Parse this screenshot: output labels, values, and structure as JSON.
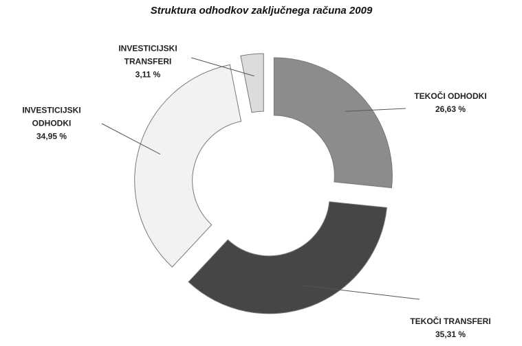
{
  "chart_data": {
    "type": "donut",
    "title": "Struktura odhodkov zaključnega računa 2009",
    "categories": [
      "TEKOČI ODHODKI",
      "TEKOČI TRANSFERI",
      "INVESTICIJSKI ODHODKI",
      "INVESTICIJSKI TRANSFERI"
    ],
    "values": [
      26.63,
      35.31,
      34.95,
      3.11
    ],
    "value_labels": [
      "26,63 %",
      "35,31 %",
      "34,95 %",
      "3,11 %"
    ],
    "colors": [
      "#8c8c8c",
      "#464646",
      "#f2f2f2",
      "#dcdcdc"
    ]
  }
}
